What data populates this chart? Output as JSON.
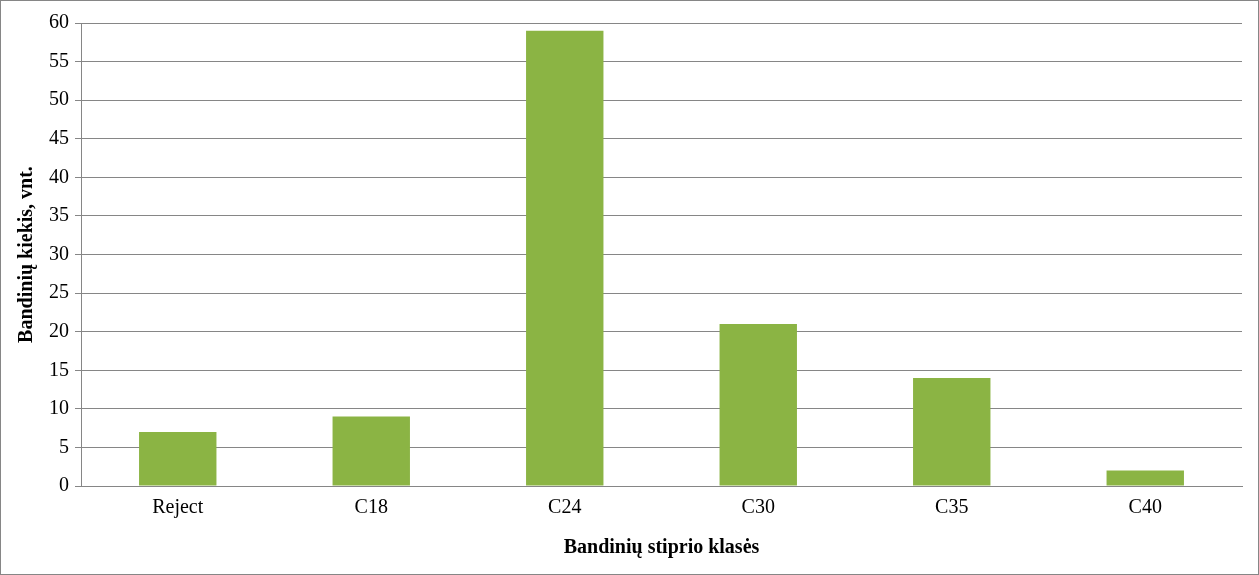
{
  "chart_data": {
    "type": "bar",
    "xlabel": "Bandinių stiprio klasės",
    "ylabel": "Bandinių kiekis, vnt.",
    "categories": [
      "Reject",
      "C18",
      "C24",
      "C30",
      "C35",
      "C40"
    ],
    "values": [
      7,
      9,
      59,
      21,
      14,
      2
    ],
    "color": "#8bb444",
    "ylim": [
      0,
      60
    ],
    "yticks": [
      0,
      5,
      10,
      15,
      20,
      25,
      30,
      35,
      40,
      45,
      50,
      55,
      60
    ],
    "grid": "y",
    "legend": false
  }
}
